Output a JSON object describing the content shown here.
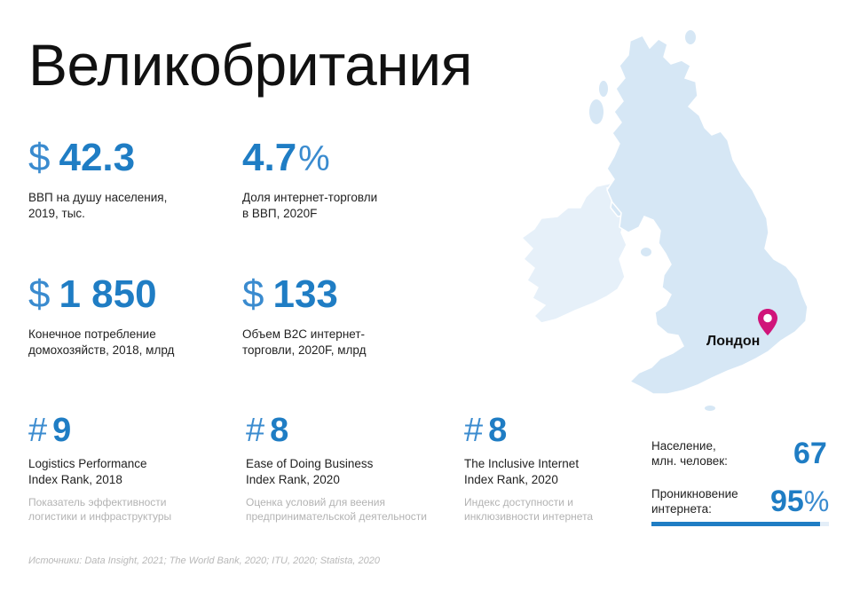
{
  "title": "Великобритания",
  "stats": [
    {
      "symbol": "$",
      "value": "42.3",
      "desc": [
        "ВВП на душу населения,",
        "2019, тыс."
      ]
    },
    {
      "value": "4.7",
      "suffix": "%",
      "desc": [
        "Доля интернет-торговли",
        "в ВВП, 2020F"
      ]
    },
    {
      "symbol": "$",
      "value": "1 850",
      "desc": [
        "Конечное потребление",
        "домохозяйств, 2018, млрд"
      ]
    },
    {
      "symbol": "$",
      "value": "133",
      "desc": [
        "Объем B2C интернет-",
        "торговли, 2020F, млрд"
      ]
    }
  ],
  "ranks": [
    {
      "symbol": "#",
      "value": "9",
      "desc": [
        "Logistics Performance",
        "Index Rank, 2018"
      ],
      "sub": [
        "Показатель эффективности",
        "логистики и инфраструктуры"
      ]
    },
    {
      "symbol": "#",
      "value": "8",
      "desc": [
        "Ease of Doing Business",
        "Index Rank, 2020"
      ],
      "sub": [
        "Оценка условий для веения",
        "предпринимательской деятельности"
      ]
    },
    {
      "symbol": "#",
      "value": "8",
      "desc": [
        "The Inclusive Internet",
        "Index Rank, 2020"
      ],
      "sub": [
        "Индекс доступности и",
        "инклюзивности интернета"
      ]
    }
  ],
  "population": {
    "label": [
      "Население,",
      "млн. человек:"
    ],
    "value": "67"
  },
  "penetration": {
    "label": [
      "Проникновение",
      "интернета:"
    ],
    "value": "95",
    "suffix": "%",
    "fill_fraction": 0.95
  },
  "map": {
    "city": "Лондон",
    "uk_color": "#d6e7f5",
    "ireland_color": "#e6f0f9",
    "pin_color": "#d0157a"
  },
  "colors": {
    "accent": "#1f7dc4"
  },
  "sources": "Источники: Data Insight, 2021; The World Bank, 2020; ITU, 2020; Statista, 2020"
}
